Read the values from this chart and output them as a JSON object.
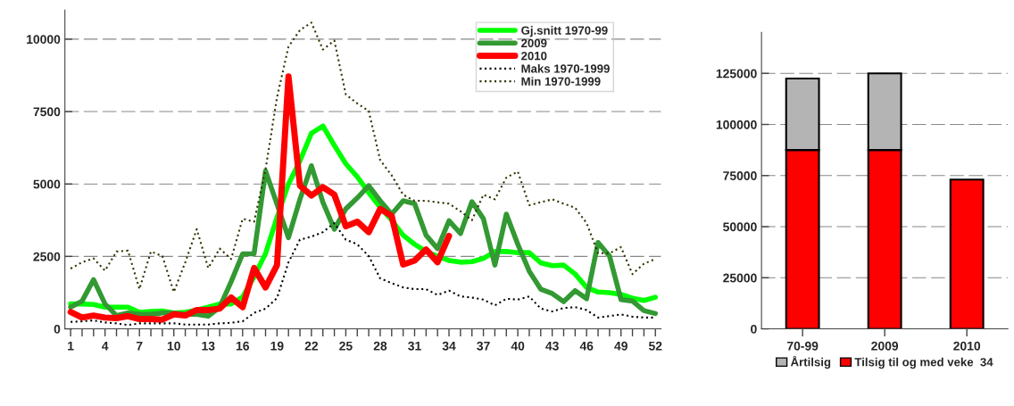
{
  "chart_data": [
    {
      "type": "line",
      "x": [
        1,
        2,
        3,
        4,
        5,
        6,
        7,
        8,
        9,
        10,
        11,
        12,
        13,
        14,
        15,
        16,
        17,
        18,
        19,
        20,
        21,
        22,
        23,
        24,
        25,
        26,
        27,
        28,
        29,
        30,
        31,
        32,
        33,
        34,
        35,
        36,
        37,
        38,
        39,
        40,
        41,
        42,
        43,
        44,
        45,
        46,
        47,
        48,
        49,
        50,
        51,
        52
      ],
      "xlim": [
        0.5,
        52.5
      ],
      "ylim": [
        0,
        11000
      ],
      "yticks": [
        0,
        2500,
        5000,
        7500,
        10000
      ],
      "xticks": [
        1,
        {
          "value": 2,
          "label": null
        },
        {
          "value": 3,
          "label": null
        },
        4,
        {
          "value": 5,
          "label": null
        },
        {
          "value": 6,
          "label": null
        },
        7,
        {
          "value": 8,
          "label": null
        },
        {
          "value": 9,
          "label": null
        },
        10,
        {
          "value": 11,
          "label": null
        },
        {
          "value": 12,
          "label": null
        },
        13,
        {
          "value": 14,
          "label": null
        },
        {
          "value": 15,
          "label": null
        },
        16,
        {
          "value": 17,
          "label": null
        },
        {
          "value": 18,
          "label": null
        },
        19,
        {
          "value": 20,
          "label": null
        },
        {
          "value": 21,
          "label": null
        },
        22,
        {
          "value": 23,
          "label": null
        },
        {
          "value": 24,
          "label": null
        },
        25,
        {
          "value": 26,
          "label": null
        },
        {
          "value": 27,
          "label": null
        },
        28,
        {
          "value": 29,
          "label": null
        },
        {
          "value": 30,
          "label": null
        },
        31,
        {
          "value": 32,
          "label": null
        },
        {
          "value": 33,
          "label": null
        },
        34,
        {
          "value": 35,
          "label": null
        },
        {
          "value": 36,
          "label": null
        },
        37,
        {
          "value": 38,
          "label": null
        },
        {
          "value": 39,
          "label": null
        },
        40,
        {
          "value": 41,
          "label": null
        },
        {
          "value": 42,
          "label": null
        },
        43,
        {
          "value": 44,
          "label": null
        },
        {
          "value": 45,
          "label": null
        },
        46,
        {
          "value": 47,
          "label": null
        },
        {
          "value": 48,
          "label": null
        },
        49,
        {
          "value": 50,
          "label": null
        },
        {
          "value": 51,
          "label": null
        },
        52
      ],
      "grid": "y",
      "legend": "top right",
      "marker": "none",
      "series": [
        {
          "name": "Gj.snitt 1970-99",
          "color": "#00ff00",
          "line_style": "solid",
          "values": [
            860,
            860,
            840,
            750,
            750,
            750,
            570,
            600,
            620,
            550,
            570,
            650,
            750,
            860,
            860,
            1100,
            1800,
            2600,
            3850,
            5000,
            5800,
            6750,
            7000,
            6330,
            5700,
            5250,
            4700,
            4200,
            3750,
            3230,
            2920,
            2670,
            2500,
            2360,
            2300,
            2320,
            2430,
            2670,
            2670,
            2630,
            2630,
            2280,
            2180,
            2200,
            1890,
            1430,
            1270,
            1250,
            1190,
            1060,
            980,
            1090
          ]
        },
        {
          "name": "2009",
          "color": "#339933",
          "line_style": "solid",
          "values": [
            750,
            960,
            1700,
            860,
            460,
            550,
            500,
            500,
            550,
            550,
            500,
            500,
            440,
            750,
            1630,
            2590,
            2590,
            5450,
            4300,
            3150,
            4470,
            5630,
            4370,
            3440,
            4140,
            4520,
            4940,
            4420,
            3960,
            4420,
            4320,
            3230,
            2770,
            3730,
            3290,
            4390,
            3800,
            2200,
            3960,
            2920,
            1990,
            1370,
            1220,
            940,
            1320,
            1040,
            2980,
            2510,
            1010,
            960,
            630,
            530
          ]
        },
        {
          "name": "2010",
          "color": "#ff0000",
          "line_style": "solid",
          "values": [
            580,
            390,
            460,
            390,
            370,
            440,
            340,
            340,
            320,
            500,
            460,
            650,
            650,
            700,
            1080,
            750,
            2100,
            1430,
            2200,
            8710,
            4940,
            4600,
            4890,
            4630,
            3540,
            3700,
            3340,
            4140,
            3900,
            2220,
            2360,
            2740,
            2300,
            3210,
            null,
            null,
            null,
            null,
            null,
            null,
            null,
            null,
            null,
            null,
            null,
            null,
            null,
            null,
            null,
            null,
            null,
            null
          ]
        },
        {
          "name": "Maks 1970-1999",
          "color": "#000000",
          "line_style": "dotted",
          "values": [
            240,
            260,
            290,
            220,
            190,
            130,
            190,
            190,
            190,
            190,
            150,
            150,
            150,
            190,
            210,
            260,
            550,
            700,
            1060,
            2300,
            3080,
            3180,
            3340,
            3650,
            3080,
            2920,
            2510,
            1740,
            1580,
            1430,
            1370,
            1370,
            1170,
            1320,
            1120,
            1080,
            1010,
            810,
            1040,
            1010,
            1120,
            700,
            600,
            720,
            750,
            650,
            390,
            440,
            500,
            420,
            390,
            390
          ]
        },
        {
          "name": "Min 1970-1999",
          "color": "#333300",
          "line_style": "dotted",
          "values": [
            2080,
            2300,
            2430,
            2010,
            2670,
            2700,
            1370,
            2670,
            2510,
            1270,
            2300,
            3440,
            2100,
            2770,
            2410,
            3800,
            3700,
            5510,
            7990,
            9740,
            10310,
            10570,
            9640,
            9950,
            8090,
            7780,
            7520,
            5820,
            5300,
            4630,
            4420,
            4420,
            4370,
            4320,
            4060,
            3750,
            4630,
            4470,
            5220,
            5430,
            4270,
            4370,
            4470,
            4320,
            4180,
            3650,
            2610,
            2610,
            2820,
            1890,
            2250,
            2410
          ]
        }
      ]
    },
    {
      "type": "bar",
      "stacked": true,
      "categories": [
        "70-99",
        "2009",
        "2010"
      ],
      "ylim": [
        0,
        145000
      ],
      "yticks": [
        0,
        25000,
        50000,
        75000,
        100000,
        125000
      ],
      "grid": "y",
      "legend": "bottom",
      "series": [
        {
          "name": "Tilsig til og med veke  34",
          "color": "#ff0000",
          "values": [
            87500,
            87500,
            73000
          ]
        },
        {
          "name": "Årtilsig",
          "color": "#b4b4b4",
          "values": [
            35000,
            37500,
            null
          ]
        }
      ]
    }
  ]
}
